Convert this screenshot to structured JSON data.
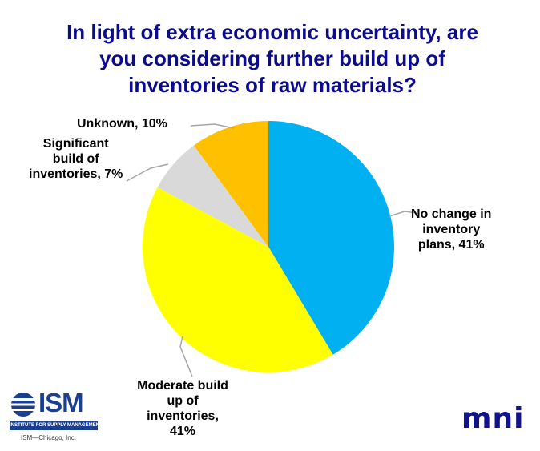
{
  "title_lines": [
    "In light of extra economic uncertainty, are",
    "you considering further build up of",
    "inventories of raw materials?"
  ],
  "chart_data": {
    "type": "pie",
    "title": "In light of extra economic uncertainty, are you considering further build up of inventories of raw materials?",
    "slices": [
      {
        "label_lines": [
          "No change in",
          "inventory",
          "plans, 41%"
        ],
        "value": 41,
        "color": "#00b0f0"
      },
      {
        "label_lines": [
          "Moderate build",
          "up of",
          "inventories,",
          "41%"
        ],
        "value": 41,
        "color": "#ffff00"
      },
      {
        "label_lines": [
          "Significant",
          "build of",
          "inventories, 7%"
        ],
        "value": 7,
        "color": "#d9d9d9"
      },
      {
        "label_lines": [
          "Unknown, 10%"
        ],
        "value": 10,
        "color": "#ffc000"
      }
    ],
    "start": "12 o'clock",
    "direction": "clockwise",
    "legend": "none"
  },
  "logos": {
    "ism": {
      "letters": "ISM",
      "tagline": "INSTITUTE FOR SUPPLY MANAGEMENT",
      "sub": "ISM—Chicago, Inc."
    },
    "mni": {
      "text": "mni",
      "color": "#12128a"
    }
  }
}
